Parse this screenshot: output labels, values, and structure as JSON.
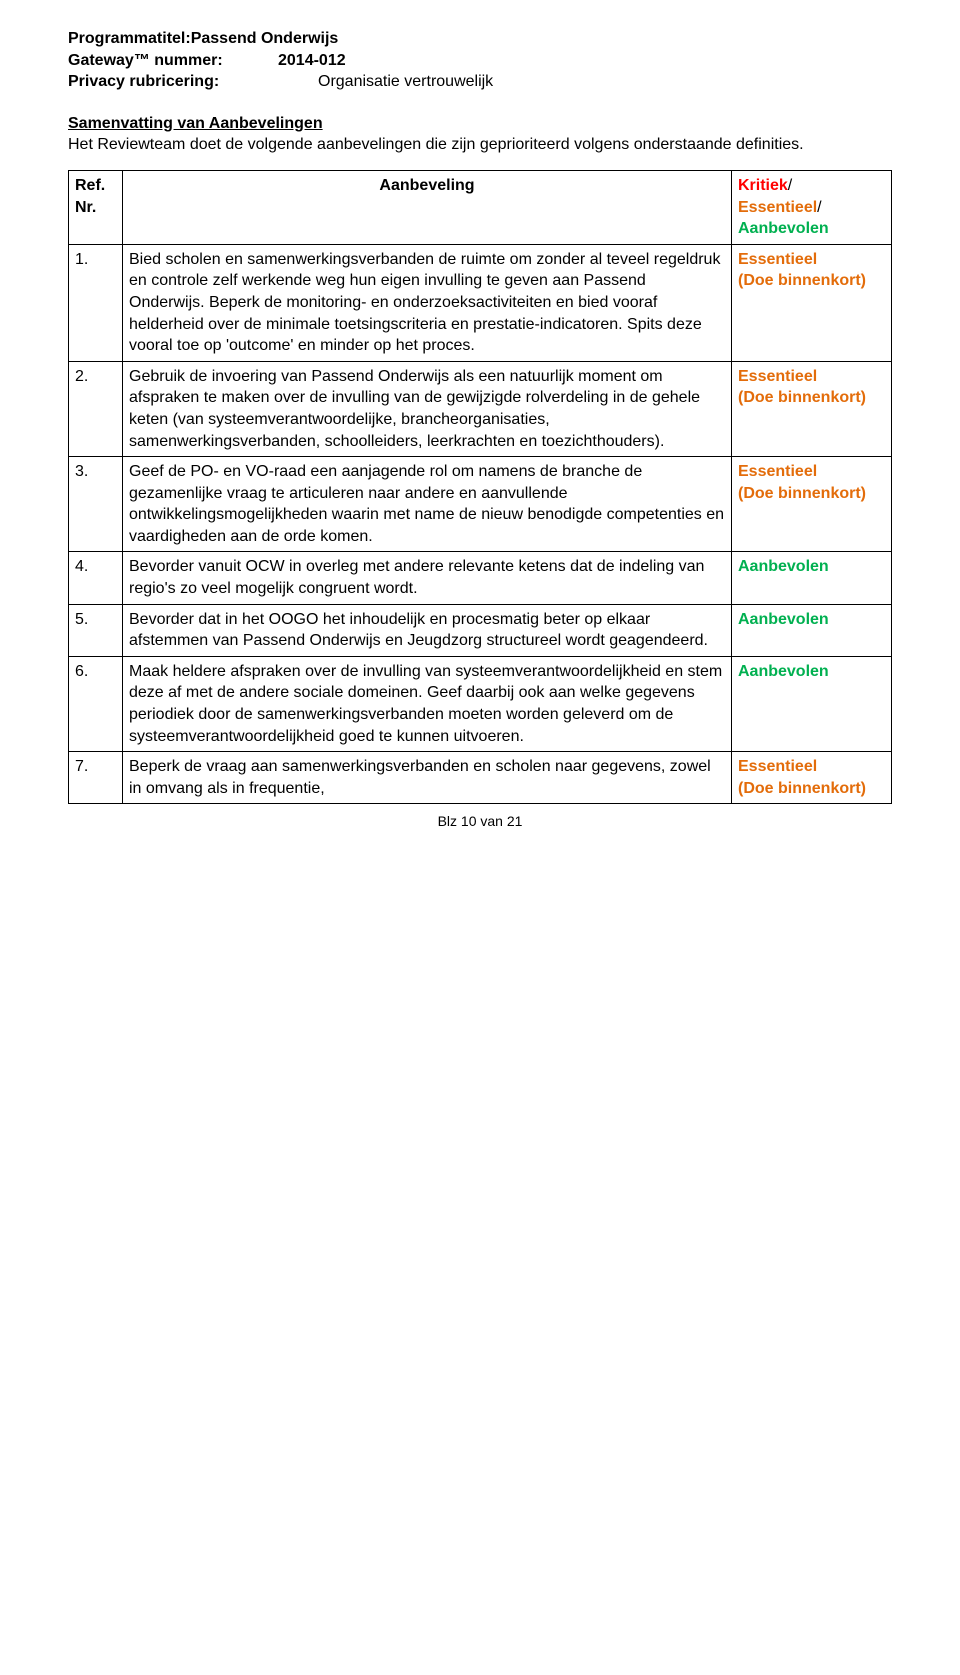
{
  "header": {
    "program_label": "Programmatitel:",
    "program_value": "Passend Onderwijs",
    "gateway_label": "Gateway™ nummer:",
    "gateway_value": "2014-012",
    "privacy_label": "Privacy rubricering:",
    "privacy_value": "Organisatie vertrouwelijk"
  },
  "heading": "Samenvatting van Aanbevelingen",
  "intro": "Het Reviewteam doet de volgende aanbevelingen die zijn geprioriteerd volgens onderstaande definities.",
  "table": {
    "head": {
      "ref_label1": "Ref.",
      "ref_label2": "Nr.",
      "aanbeveling_label": "Aanbeveling",
      "status_l1": "Kritiek",
      "status_l2": "Essentieel",
      "status_l3": "Aanbevolen",
      "sep": "/"
    },
    "rows": [
      {
        "nr": "1.",
        "text": "Bied scholen en samenwerkingsverbanden de ruimte om zonder al teveel regeldruk en controle zelf werkende weg hun eigen invulling te geven aan Passend Onderwijs. Beperk de monitoring- en onderzoeksactiviteiten en bied vooraf helderheid over de minimale toetsingscriteria en prestatie-indicatoren. Spits deze vooral toe op 'outcome' en minder op het proces.",
        "status_main": "Essentieel",
        "status_sub": "(Doe binnenkort)",
        "status_class": "status-essentieel"
      },
      {
        "nr": "2.",
        "text": "Gebruik de invoering van Passend Onderwijs als een natuurlijk moment om afspraken te maken over de invulling van de gewijzigde rolverdeling in de gehele keten (van systeemverantwoordelijke, brancheorganisaties, samenwerkingsverbanden, schoolleiders, leerkrachten en toezichthouders).",
        "status_main": "Essentieel",
        "status_sub": "(Doe binnenkort)",
        "status_class": "status-essentieel"
      },
      {
        "nr": "3.",
        "text": "Geef de PO- en VO-raad een aanjagende rol om namens de branche de gezamenlijke vraag te articuleren naar andere en aanvullende ontwikkelingsmogelijkheden waarin met name de nieuw benodigde competenties en vaardigheden aan de orde komen.",
        "status_main": "Essentieel",
        "status_sub": "(Doe binnenkort)",
        "status_class": "status-essentieel"
      },
      {
        "nr": "4.",
        "text": "Bevorder vanuit OCW in overleg met andere relevante ketens dat de indeling van regio's zo veel mogelijk congruent wordt.",
        "status_main": "Aanbevolen",
        "status_sub": "",
        "status_class": "status-aanbevolen"
      },
      {
        "nr": "5.",
        "text": "Bevorder dat in het OOGO het inhoudelijk en procesmatig beter op elkaar afstemmen van Passend Onderwijs en Jeugdzorg structureel wordt geagendeerd.",
        "status_main": "Aanbevolen",
        "status_sub": "",
        "status_class": "status-aanbevolen"
      },
      {
        "nr": "6.",
        "text": "Maak heldere afspraken over de invulling van systeemverantwoordelijkheid en stem deze af met de andere sociale domeinen. Geef daarbij ook aan welke gegevens periodiek door de samenwerkingsverbanden moeten worden geleverd om de systeemverantwoordelijkheid goed te kunnen uitvoeren.",
        "status_main": "Aanbevolen",
        "status_sub": "",
        "status_class": "status-aanbevolen"
      },
      {
        "nr": "7.",
        "text": "Beperk de vraag aan samenwerkingsverbanden en scholen naar gegevens, zowel in omvang als in frequentie,",
        "status_main": "Essentieel",
        "status_sub": "(Doe binnenkort)",
        "status_class": "status-essentieel"
      }
    ]
  },
  "footer": "Blz 10 van 21",
  "colors": {
    "kritiek": "#ff0000",
    "essentieel": "#e36c0a",
    "aanbevolen": "#00b050",
    "text": "#000000",
    "background": "#ffffff"
  }
}
